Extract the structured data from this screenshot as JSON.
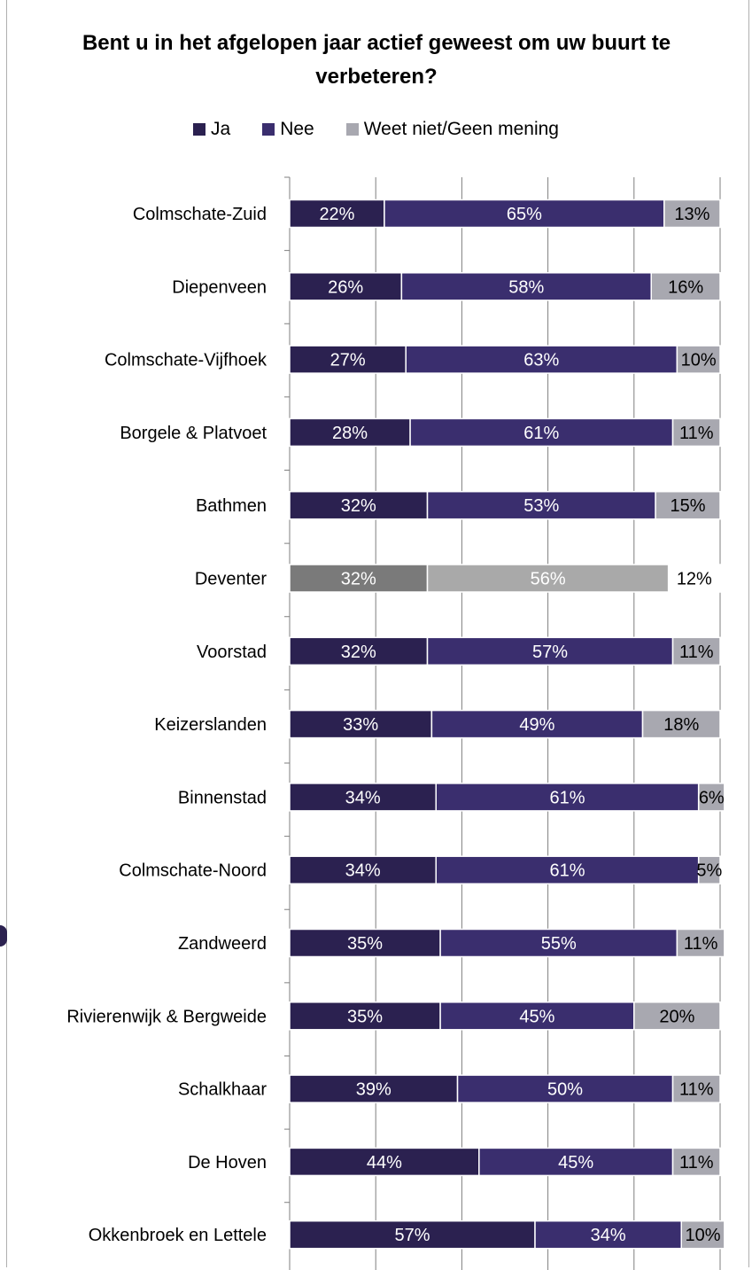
{
  "chart_data": {
    "type": "bar",
    "orientation": "horizontal",
    "stacked": "percent",
    "title": "Bent u in het afgelopen jaar actief geweest om uw buurt te verbeteren?",
    "legend_position": "top",
    "categories": [
      "Colmschate-Zuid",
      "Diepenveen",
      "Colmschate-Vijfhoek",
      "Borgele & Platvoet",
      "Bathmen",
      "Deventer",
      "Voorstad",
      "Keizerslanden",
      "Binnenstad",
      "Colmschate-Noord",
      "Zandweerd",
      "Rivierenwijk & Bergweide",
      "Schalkhaar",
      "De Hoven",
      "Okkenbroek en Lettele"
    ],
    "series": [
      {
        "name": "Ja",
        "color": "#2b2150",
        "values": [
          22,
          26,
          27,
          28,
          32,
          32,
          32,
          33,
          34,
          34,
          35,
          35,
          39,
          44,
          57
        ]
      },
      {
        "name": "Nee",
        "color": "#3a2e6e",
        "values": [
          65,
          58,
          63,
          61,
          53,
          56,
          57,
          49,
          61,
          61,
          55,
          45,
          50,
          45,
          34
        ]
      },
      {
        "name": "Weet niet/Geen mening",
        "color": "#a8a8b0",
        "values": [
          13,
          16,
          10,
          11,
          15,
          12,
          11,
          18,
          6,
          5,
          11,
          20,
          11,
          11,
          10
        ]
      }
    ],
    "highlight": {
      "category": "Deventer",
      "colors": [
        "#7a7a7a",
        "#a9a9a9",
        "#ffffff"
      ]
    },
    "xlim": [
      0,
      100
    ],
    "xticks": [
      "0%",
      "20%",
      "40%",
      "60%",
      "80%",
      "100%"
    ],
    "grid": true,
    "data_label_suffix": "%"
  }
}
